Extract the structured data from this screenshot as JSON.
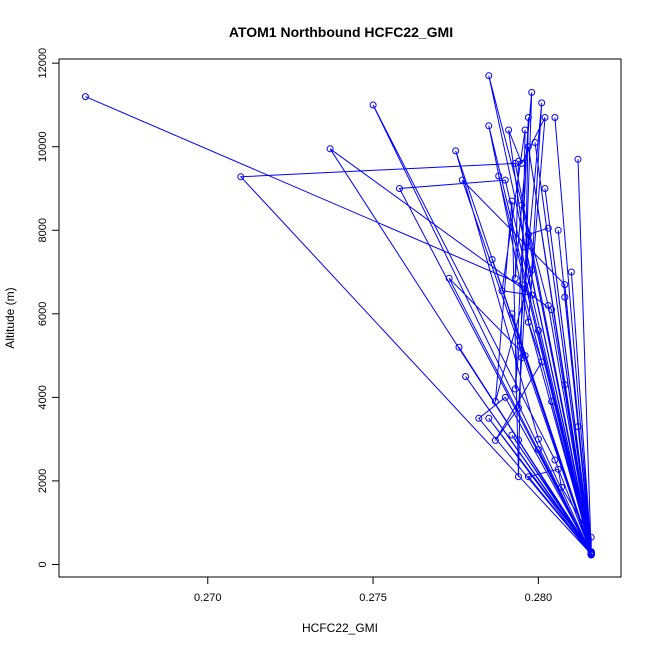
{
  "chart_data": {
    "type": "line",
    "title": "ATOM1 Northbound HCFC22_GMI",
    "xlabel": "HCFC22_GMI",
    "ylabel": "Altitude (m)",
    "xlim": [
      0.2655,
      0.2825
    ],
    "ylim": [
      -300,
      12100
    ],
    "xticks": [
      0.27,
      0.275,
      0.28
    ],
    "xtick_labels": [
      "0.270",
      "0.275",
      "0.280"
    ],
    "yticks": [
      0,
      2000,
      4000,
      6000,
      8000,
      10000,
      12000
    ],
    "ytick_labels": [
      "0",
      "2000",
      "4000",
      "6000",
      "8000",
      "10000",
      "12000"
    ],
    "grid": false,
    "legend": "none",
    "series_color": "#0000ff",
    "markers": "open-circle",
    "series": [
      {
        "x": [
          0.2816,
          0.2816,
          0.2807,
          0.2806,
          0.2797,
          0.2816,
          0.28,
          0.2816,
          0.2794,
          0.2816,
          0.2792,
          0.2816,
          0.2812,
          0.2816,
          0.2785,
          0.2816,
          0.2804,
          0.2816,
          0.2778,
          0.2816,
          0.2776,
          0.2816,
          0.28,
          0.2816,
          0.2792,
          0.2816,
          0.2808,
          0.2816,
          0.281,
          0.2816,
          0.2786,
          0.2816,
          0.2796,
          0.2816,
          0.2806,
          0.2816,
          0.2795,
          0.2816,
          0.2802,
          0.2816,
          0.2788,
          0.2816,
          0.2812,
          0.2816,
          0.2799,
          0.2816,
          0.2805,
          0.2816
        ],
        "y": [
          240,
          650,
          1850,
          2280,
          2100,
          260,
          2750,
          230,
          2980,
          300,
          3100,
          260,
          3300,
          230,
          3500,
          300,
          3900,
          240,
          4500,
          270,
          5200,
          250,
          5600,
          300,
          6000,
          260,
          6400,
          240,
          7000,
          300,
          7300,
          270,
          7600,
          240,
          8000,
          260,
          8600,
          300,
          9000,
          240,
          9300,
          260,
          9700,
          280,
          10100,
          250,
          10700,
          240
        ]
      },
      {
        "x": [
          0.2663,
          0.2795,
          0.2816,
          0.271,
          0.2793,
          0.2816,
          0.2737,
          0.2804,
          0.2816,
          0.275,
          0.2805,
          0.2816,
          0.2758,
          0.279,
          0.2816,
          0.2775,
          0.28,
          0.2816,
          0.2777,
          0.2808,
          0.2816,
          0.2773,
          0.2796,
          0.2816,
          0.2785,
          0.2803,
          0.2816,
          0.2785,
          0.2797,
          0.2816,
          0.2797,
          0.2808,
          0.2816,
          0.2782,
          0.279,
          0.2816
        ],
        "y": [
          11200,
          6700,
          250,
          9280,
          9600,
          280,
          9950,
          6100,
          230,
          11000,
          2500,
          260,
          9000,
          9200,
          300,
          9900,
          3000,
          250,
          9200,
          6700,
          280,
          6850,
          5000,
          240,
          11700,
          6200,
          260,
          10500,
          5800,
          300,
          10000,
          4300,
          250,
          3500,
          4000,
          270
        ]
      },
      {
        "x": [
          0.2794,
          0.2793,
          0.2798,
          0.2796,
          0.2797,
          0.2793,
          0.2801,
          0.2798,
          0.2787,
          0.2792,
          0.2794,
          0.2796,
          0.2789,
          0.2798,
          0.2791,
          0.2795,
          0.2802,
          0.2797,
          0.2801,
          0.2787,
          0.2794,
          0.2795,
          0.2797,
          0.2803
        ],
        "y": [
          9650,
          6850,
          11300,
          6600,
          10700,
          4200,
          11050,
          7050,
          3900,
          8700,
          2100,
          10400,
          6550,
          6450,
          10400,
          9600,
          10700,
          5800,
          4850,
          2970,
          3750,
          4950,
          7900,
          8050
        ]
      }
    ]
  }
}
